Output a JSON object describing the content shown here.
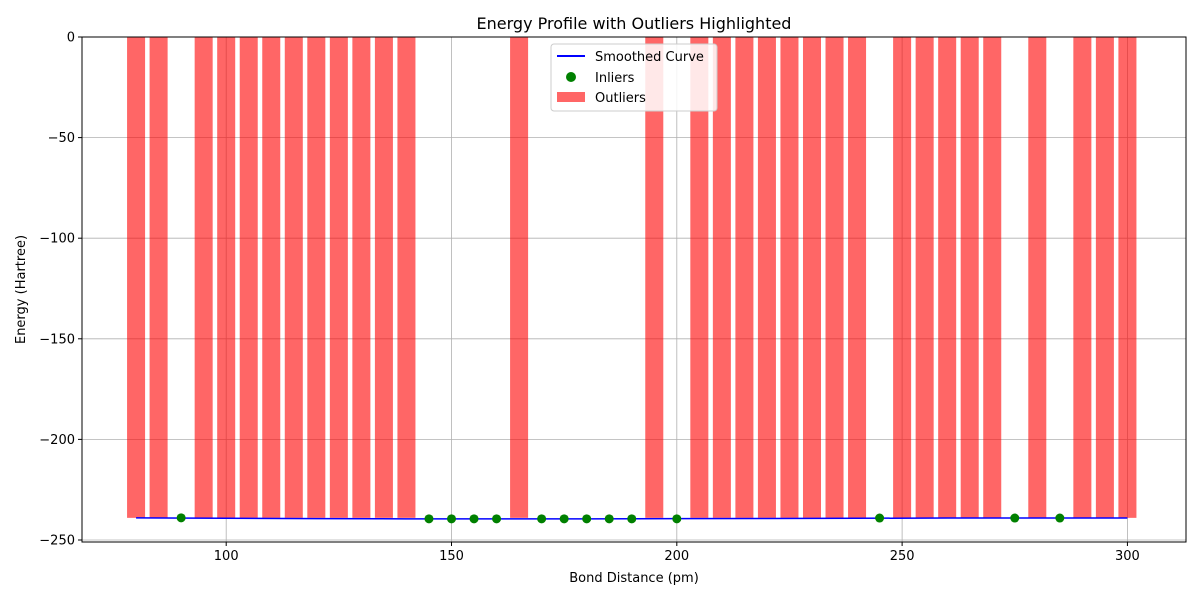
{
  "chart_data": {
    "type": "bar",
    "title": "Energy Profile with Outliers Highlighted",
    "xlabel": "Bond Distance (pm)",
    "ylabel": "Energy (Hartree)",
    "xlim": [
      68,
      313
    ],
    "ylim": [
      -251,
      0
    ],
    "xticks": [
      100,
      150,
      200,
      250,
      300
    ],
    "yticks": [
      0,
      -50,
      -100,
      -150,
      -200,
      -250
    ],
    "grid": true,
    "legend_position": "upper center",
    "colors": {
      "curve": "#0000ff",
      "inliers": "#008000",
      "outliers": "#ff0000"
    },
    "series": [
      {
        "name": "Smoothed Curve",
        "kind": "line",
        "x": [
          80,
          100,
          120,
          140,
          160,
          180,
          200,
          220,
          240,
          260,
          280,
          300
        ],
        "y": [
          -239.0,
          -239.2,
          -239.4,
          -239.5,
          -239.5,
          -239.5,
          -239.4,
          -239.3,
          -239.2,
          -239.1,
          -239.1,
          -239.1
        ]
      },
      {
        "name": "Inliers",
        "kind": "scatter",
        "x": [
          90,
          145,
          150,
          155,
          160,
          170,
          175,
          180,
          185,
          190,
          200,
          245,
          275,
          285
        ],
        "y": [
          -239.0,
          -239.5,
          -239.5,
          -239.5,
          -239.5,
          -239.5,
          -239.5,
          -239.5,
          -239.5,
          -239.5,
          -239.5,
          -239.1,
          -239.1,
          -239.1
        ]
      },
      {
        "name": "Outliers",
        "kind": "bar",
        "bar_width": 4,
        "x": [
          80,
          85,
          95,
          100,
          105,
          110,
          115,
          120,
          125,
          130,
          135,
          140,
          165,
          195,
          205,
          210,
          215,
          220,
          225,
          230,
          235,
          240,
          250,
          255,
          260,
          265,
          270,
          280,
          290,
          295,
          300
        ],
        "y": [
          -239.0,
          -239.0,
          -239.0,
          -239.0,
          -239.0,
          -239.0,
          -239.0,
          -239.0,
          -239.0,
          -239.0,
          -239.0,
          -239.0,
          -239.0,
          -239.0,
          -239.0,
          -239.0,
          -239.0,
          -239.0,
          -239.0,
          -239.0,
          -239.0,
          -239.0,
          -239.0,
          -239.0,
          -239.0,
          -239.0,
          -239.0,
          -239.0,
          -239.0,
          -239.0,
          -239.0
        ]
      }
    ]
  }
}
